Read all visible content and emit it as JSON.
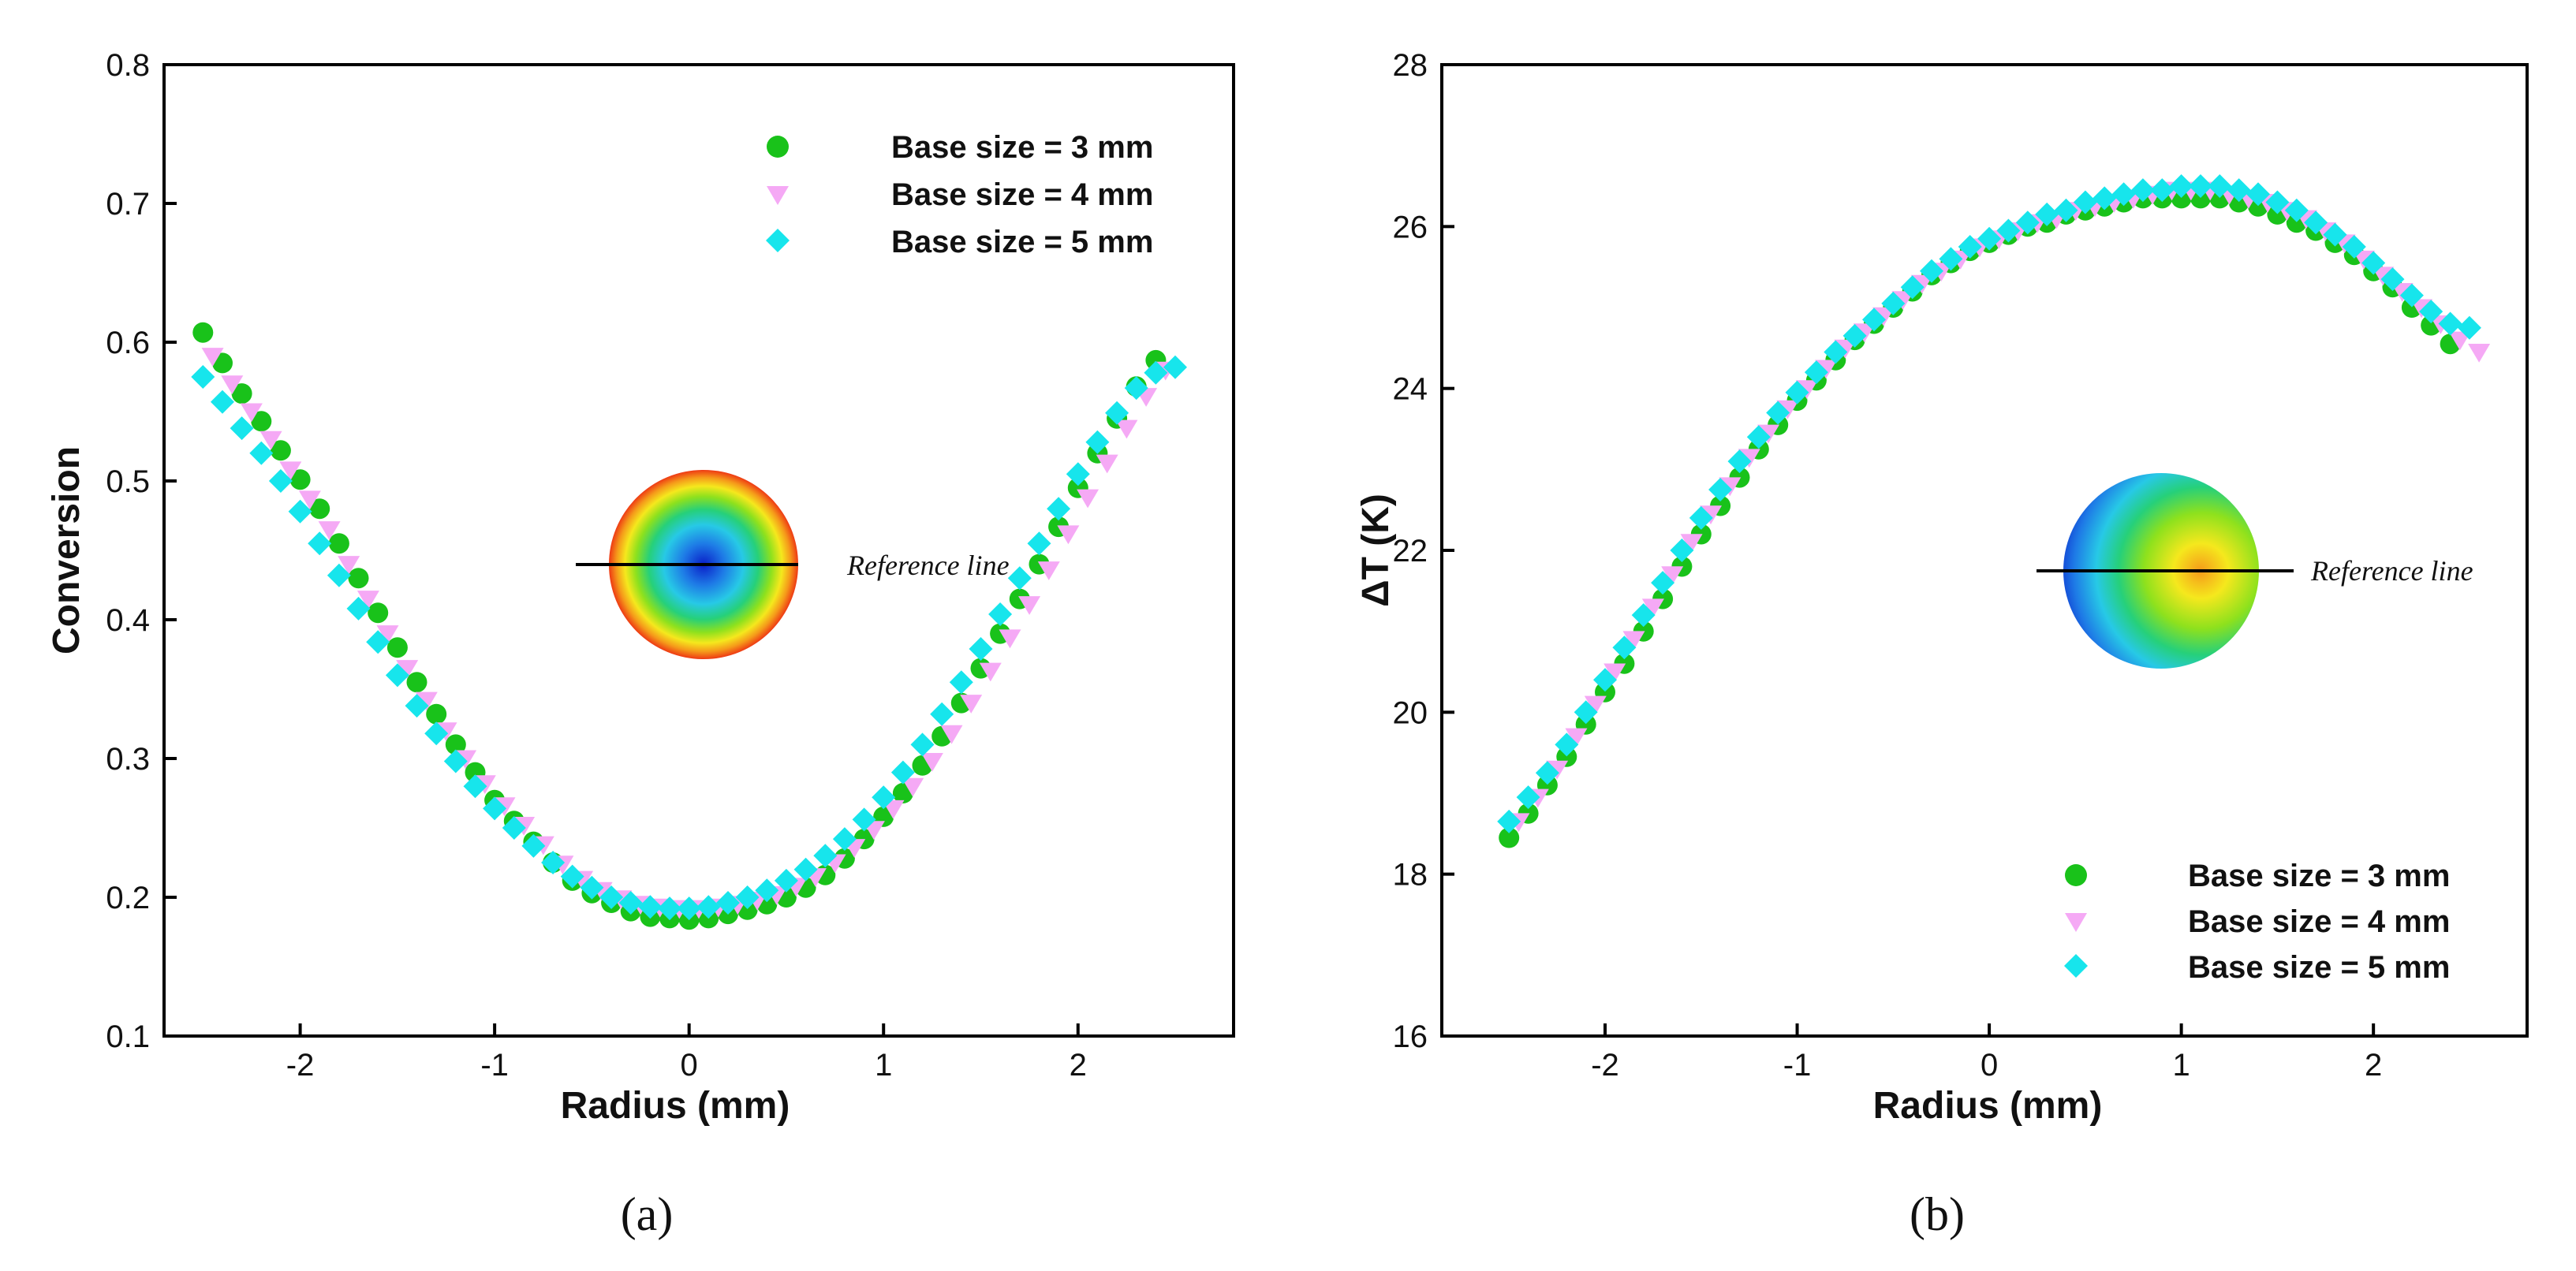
{
  "chart_data": [
    {
      "type": "scatter",
      "panel": "a",
      "caption": "(a)",
      "xlabel": "Radius (mm)",
      "ylabel": "Conversion",
      "xlim": [
        -2.7,
        2.8
      ],
      "ylim": [
        0.1,
        0.8
      ],
      "xticks": [
        -2,
        -1,
        0,
        1,
        2
      ],
      "xtick_labels": [
        "-2",
        "-1",
        "0",
        "1",
        "2"
      ],
      "yticks": [
        0.1,
        0.2,
        0.3,
        0.4,
        0.5,
        0.6,
        0.7,
        0.8
      ],
      "ytick_labels": [
        "0.1",
        "0.2",
        "0.3",
        "0.4",
        "0.5",
        "0.6",
        "0.7",
        "0.8"
      ],
      "legend_position": "top-right",
      "inset_label": "Reference line",
      "inset_palette": [
        "#0a1fc8",
        "#1e7ae6",
        "#27c9e6",
        "#26d07a",
        "#8ee11d",
        "#f5e81d",
        "#f59a1a",
        "#ee3a14"
      ],
      "series": [
        {
          "name": "Base size = 3 mm",
          "marker": "circle",
          "color": "#19c21a",
          "x": [
            -2.5,
            -2.4,
            -2.3,
            -2.2,
            -2.1,
            -2.0,
            -1.9,
            -1.8,
            -1.7,
            -1.6,
            -1.5,
            -1.4,
            -1.3,
            -1.2,
            -1.1,
            -1.0,
            -0.9,
            -0.8,
            -0.7,
            -0.6,
            -0.5,
            -0.4,
            -0.3,
            -0.2,
            -0.1,
            0.0,
            0.1,
            0.2,
            0.3,
            0.4,
            0.5,
            0.6,
            0.7,
            0.8,
            0.9,
            1.0,
            1.1,
            1.2,
            1.3,
            1.4,
            1.5,
            1.6,
            1.7,
            1.8,
            1.9,
            2.0,
            2.1,
            2.2,
            2.3,
            2.4
          ],
          "y": [
            0.607,
            0.585,
            0.563,
            0.543,
            0.522,
            0.501,
            0.48,
            0.455,
            0.43,
            0.405,
            0.38,
            0.355,
            0.332,
            0.31,
            0.29,
            0.27,
            0.255,
            0.24,
            0.225,
            0.212,
            0.203,
            0.196,
            0.19,
            0.186,
            0.185,
            0.184,
            0.185,
            0.188,
            0.191,
            0.195,
            0.2,
            0.207,
            0.216,
            0.228,
            0.242,
            0.258,
            0.275,
            0.295,
            0.316,
            0.34,
            0.365,
            0.39,
            0.415,
            0.44,
            0.467,
            0.495,
            0.52,
            0.545,
            0.568,
            0.587
          ]
        },
        {
          "name": "Base size = 4 mm",
          "marker": "triangle-down",
          "color": "#f5a9f5",
          "x": [
            -2.45,
            -2.35,
            -2.25,
            -2.15,
            -2.05,
            -1.95,
            -1.85,
            -1.75,
            -1.65,
            -1.55,
            -1.45,
            -1.35,
            -1.25,
            -1.15,
            -1.05,
            -0.95,
            -0.85,
            -0.75,
            -0.65,
            -0.55,
            -0.45,
            -0.35,
            -0.25,
            -0.15,
            -0.05,
            0.05,
            0.15,
            0.25,
            0.35,
            0.45,
            0.55,
            0.65,
            0.75,
            0.85,
            0.95,
            1.05,
            1.15,
            1.25,
            1.35,
            1.45,
            1.55,
            1.65,
            1.75,
            1.85,
            1.95,
            2.05,
            2.15,
            2.25,
            2.35,
            2.45
          ],
          "y": [
            0.59,
            0.57,
            0.55,
            0.53,
            0.508,
            0.487,
            0.465,
            0.44,
            0.415,
            0.39,
            0.365,
            0.342,
            0.32,
            0.3,
            0.282,
            0.266,
            0.252,
            0.238,
            0.224,
            0.213,
            0.205,
            0.199,
            0.195,
            0.193,
            0.192,
            0.192,
            0.193,
            0.195,
            0.198,
            0.202,
            0.208,
            0.215,
            0.225,
            0.236,
            0.249,
            0.264,
            0.28,
            0.298,
            0.318,
            0.34,
            0.363,
            0.387,
            0.411,
            0.436,
            0.462,
            0.488,
            0.513,
            0.538,
            0.561,
            0.58
          ]
        },
        {
          "name": "Base size = 5 mm",
          "marker": "diamond",
          "color": "#17e5ec",
          "x": [
            -2.5,
            -2.4,
            -2.3,
            -2.2,
            -2.1,
            -2.0,
            -1.9,
            -1.8,
            -1.7,
            -1.6,
            -1.5,
            -1.4,
            -1.3,
            -1.2,
            -1.1,
            -1.0,
            -0.9,
            -0.8,
            -0.7,
            -0.6,
            -0.5,
            -0.4,
            -0.3,
            -0.2,
            -0.1,
            0.0,
            0.1,
            0.2,
            0.3,
            0.4,
            0.5,
            0.6,
            0.7,
            0.8,
            0.9,
            1.0,
            1.1,
            1.2,
            1.3,
            1.4,
            1.5,
            1.6,
            1.7,
            1.8,
            1.9,
            2.0,
            2.1,
            2.2,
            2.3,
            2.4,
            2.5
          ],
          "y": [
            0.575,
            0.557,
            0.538,
            0.52,
            0.5,
            0.478,
            0.455,
            0.432,
            0.408,
            0.384,
            0.36,
            0.338,
            0.318,
            0.298,
            0.28,
            0.264,
            0.25,
            0.237,
            0.225,
            0.215,
            0.207,
            0.2,
            0.196,
            0.193,
            0.192,
            0.192,
            0.193,
            0.196,
            0.2,
            0.205,
            0.212,
            0.22,
            0.23,
            0.242,
            0.256,
            0.272,
            0.29,
            0.31,
            0.332,
            0.355,
            0.379,
            0.404,
            0.43,
            0.455,
            0.48,
            0.505,
            0.528,
            0.549,
            0.567,
            0.578,
            0.582
          ]
        }
      ]
    },
    {
      "type": "scatter",
      "panel": "b",
      "caption": "(b)",
      "xlabel": "Radius (mm)",
      "ylabel": "ΔT (K)",
      "xlim": [
        -2.85,
        2.8
      ],
      "ylim": [
        16,
        28
      ],
      "xticks": [
        -2,
        -1,
        0,
        1,
        2
      ],
      "xtick_labels": [
        "-2",
        "-1",
        "0",
        "1",
        "2"
      ],
      "yticks": [
        16,
        18,
        20,
        22,
        24,
        26,
        28
      ],
      "ytick_labels": [
        "16",
        "18",
        "20",
        "22",
        "24",
        "26",
        "28"
      ],
      "legend_position": "bottom-right",
      "inset_label": "Reference line",
      "inset_palette": [
        "#0a1fc8",
        "#1e7ae6",
        "#27c9e6",
        "#26d07a",
        "#8ee11d",
        "#f5e81d",
        "#f59a1a",
        "#ee3a14"
      ],
      "series": [
        {
          "name": "Base size = 3 mm",
          "marker": "circle",
          "color": "#19c21a",
          "x": [
            -2.5,
            -2.4,
            -2.3,
            -2.2,
            -2.1,
            -2.0,
            -1.9,
            -1.8,
            -1.7,
            -1.6,
            -1.5,
            -1.4,
            -1.3,
            -1.2,
            -1.1,
            -1.0,
            -0.9,
            -0.8,
            -0.7,
            -0.6,
            -0.5,
            -0.4,
            -0.3,
            -0.2,
            -0.1,
            0.0,
            0.1,
            0.2,
            0.3,
            0.4,
            0.5,
            0.6,
            0.7,
            0.8,
            0.9,
            1.0,
            1.1,
            1.2,
            1.3,
            1.4,
            1.5,
            1.6,
            1.7,
            1.8,
            1.9,
            2.0,
            2.1,
            2.2,
            2.3,
            2.4
          ],
          "y": [
            18.45,
            18.75,
            19.1,
            19.45,
            19.85,
            20.25,
            20.6,
            21.0,
            21.4,
            21.8,
            22.2,
            22.55,
            22.9,
            23.25,
            23.55,
            23.85,
            24.1,
            24.35,
            24.6,
            24.8,
            25.0,
            25.2,
            25.4,
            25.55,
            25.7,
            25.8,
            25.9,
            26.0,
            26.05,
            26.15,
            26.2,
            26.25,
            26.3,
            26.35,
            26.35,
            26.35,
            26.35,
            26.35,
            26.3,
            26.25,
            26.15,
            26.05,
            25.95,
            25.8,
            25.65,
            25.45,
            25.25,
            25.0,
            24.78,
            24.55
          ]
        },
        {
          "name": "Base size = 4 mm",
          "marker": "triangle-down",
          "color": "#f5a9f5",
          "x": [
            -2.45,
            -2.35,
            -2.25,
            -2.15,
            -2.05,
            -1.95,
            -1.85,
            -1.75,
            -1.65,
            -1.55,
            -1.45,
            -1.35,
            -1.25,
            -1.15,
            -1.05,
            -0.95,
            -0.85,
            -0.75,
            -0.65,
            -0.55,
            -0.45,
            -0.35,
            -0.25,
            -0.15,
            -0.05,
            0.05,
            0.15,
            0.25,
            0.35,
            0.45,
            0.55,
            0.65,
            0.75,
            0.85,
            0.95,
            1.05,
            1.15,
            1.25,
            1.35,
            1.45,
            1.55,
            1.65,
            1.75,
            1.85,
            1.95,
            2.05,
            2.15,
            2.25,
            2.35,
            2.45,
            2.55
          ],
          "y": [
            18.65,
            18.95,
            19.3,
            19.7,
            20.1,
            20.5,
            20.9,
            21.3,
            21.7,
            22.1,
            22.45,
            22.8,
            23.15,
            23.45,
            23.75,
            24.0,
            24.25,
            24.5,
            24.7,
            24.9,
            25.1,
            25.3,
            25.45,
            25.6,
            25.75,
            25.85,
            25.95,
            26.05,
            26.1,
            26.2,
            26.25,
            26.3,
            26.35,
            26.4,
            26.45,
            26.45,
            26.45,
            26.4,
            26.35,
            26.3,
            26.2,
            26.1,
            25.95,
            25.8,
            25.6,
            25.4,
            25.2,
            25.0,
            24.8,
            24.6,
            24.45
          ]
        },
        {
          "name": "Base size = 5 mm",
          "marker": "diamond",
          "color": "#17e5ec",
          "x": [
            -2.5,
            -2.4,
            -2.3,
            -2.2,
            -2.1,
            -2.0,
            -1.9,
            -1.8,
            -1.7,
            -1.6,
            -1.5,
            -1.4,
            -1.3,
            -1.2,
            -1.1,
            -1.0,
            -0.9,
            -0.8,
            -0.7,
            -0.6,
            -0.5,
            -0.4,
            -0.3,
            -0.2,
            -0.1,
            0.0,
            0.1,
            0.2,
            0.3,
            0.4,
            0.5,
            0.6,
            0.7,
            0.8,
            0.9,
            1.0,
            1.1,
            1.2,
            1.3,
            1.4,
            1.5,
            1.6,
            1.7,
            1.8,
            1.9,
            2.0,
            2.1,
            2.2,
            2.3,
            2.4,
            2.5
          ],
          "y": [
            18.65,
            18.95,
            19.25,
            19.6,
            20.0,
            20.4,
            20.8,
            21.2,
            21.6,
            22.0,
            22.4,
            22.75,
            23.1,
            23.4,
            23.7,
            23.95,
            24.2,
            24.45,
            24.65,
            24.85,
            25.05,
            25.25,
            25.45,
            25.6,
            25.75,
            25.85,
            25.95,
            26.05,
            26.15,
            26.2,
            26.3,
            26.35,
            26.4,
            26.45,
            26.45,
            26.5,
            26.5,
            26.5,
            26.45,
            26.4,
            26.3,
            26.2,
            26.05,
            25.9,
            25.75,
            25.55,
            25.35,
            25.15,
            24.95,
            24.8,
            24.75
          ]
        }
      ]
    }
  ]
}
